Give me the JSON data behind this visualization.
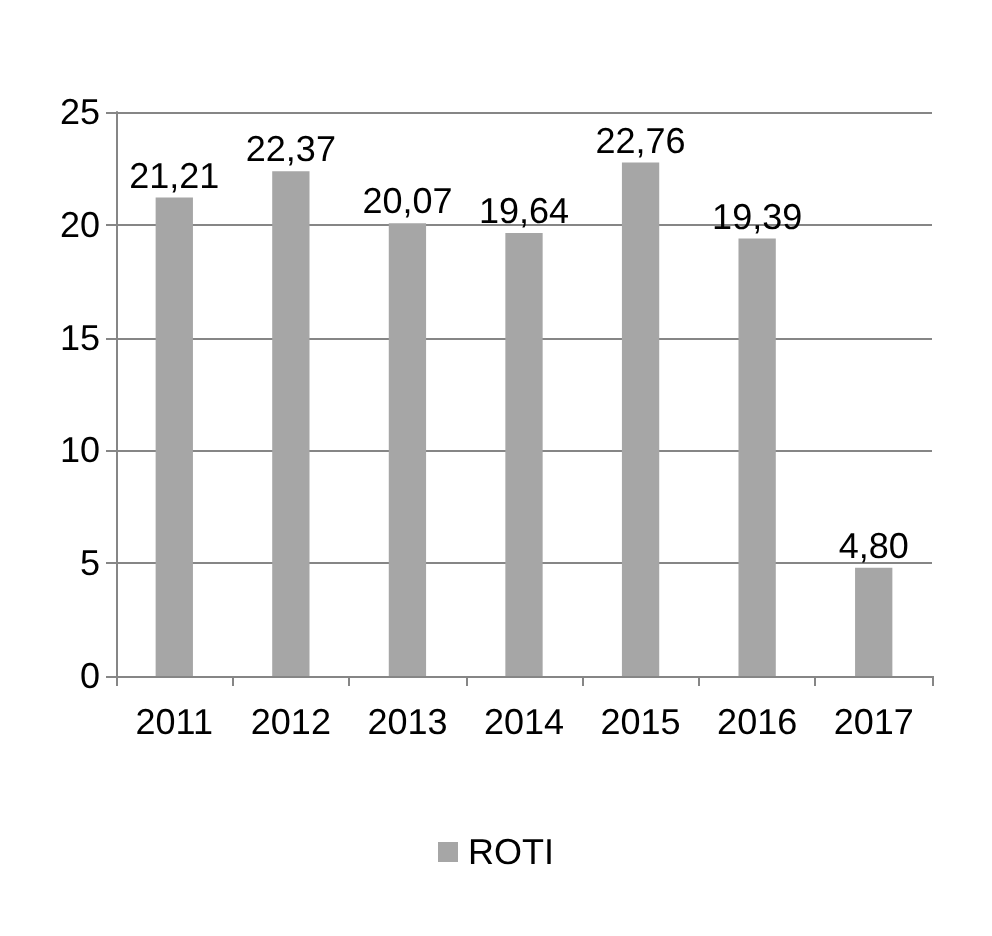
{
  "chart_data": {
    "type": "bar",
    "categories": [
      "2011",
      "2012",
      "2013",
      "2014",
      "2015",
      "2016",
      "2017"
    ],
    "series": [
      {
        "name": "ROTI",
        "color": "#a6a6a6",
        "values": [
          21.21,
          22.37,
          20.07,
          19.64,
          22.76,
          19.39,
          4.8
        ],
        "value_labels": [
          "21,21",
          "22,37",
          "20,07",
          "19,64",
          "22,76",
          "19,39",
          "4,80"
        ]
      }
    ],
    "ylim": [
      0,
      25
    ],
    "yticks": [
      0,
      5,
      10,
      15,
      20,
      25
    ],
    "grid": "y",
    "legend": "bottom"
  }
}
